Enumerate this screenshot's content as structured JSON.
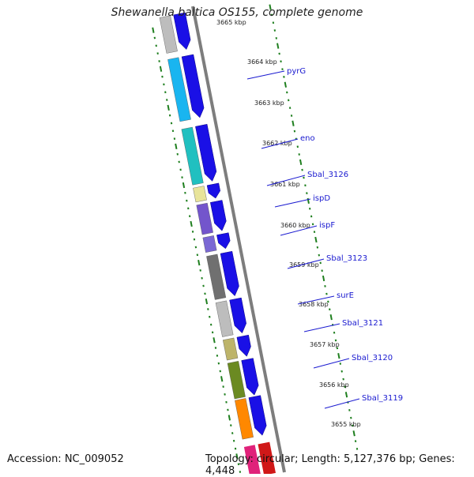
{
  "title": "Shewanella baltica OS155, complete genome",
  "accession_text": "Accession: NC_009052",
  "topology_text": "Topology: circular; Length: 5,127,376 bp; Genes: 4,448",
  "colors": {
    "backbone": "#7d7d7d",
    "strand_arrow": "#1a10e6",
    "tick": "#1f7f1f",
    "label": "#1a1ad0"
  },
  "kbp_labels": [
    "3665 kbp",
    "3664 kbp",
    "3663 kbp",
    "3662 kbp",
    "3661 kbp",
    "3660 kbp",
    "3659 kbp",
    "3658 kbp",
    "3657 kbp",
    "3656 kbp",
    "3655 kbp"
  ],
  "genes": [
    {
      "name": "",
      "color": "#bdbdbd"
    },
    {
      "name": "pyrG",
      "color": "#19b5f0"
    },
    {
      "name": "eno",
      "color": "#20c0c0"
    },
    {
      "name": "Sbal_3126",
      "color": "#e8e49a"
    },
    {
      "name": "ispD",
      "color": "#7355cc"
    },
    {
      "name": "ispF",
      "color": "#7a68d4"
    },
    {
      "name": "Sbal_3123",
      "color": "#707070"
    },
    {
      "name": "surE",
      "color": "#bdbdbd"
    },
    {
      "name": "Sbal_3121",
      "color": "#bdb46a"
    },
    {
      "name": "Sbal_3120",
      "color": "#6b8a22"
    },
    {
      "name": "Sbal_3119",
      "color": "#ff8800"
    }
  ]
}
